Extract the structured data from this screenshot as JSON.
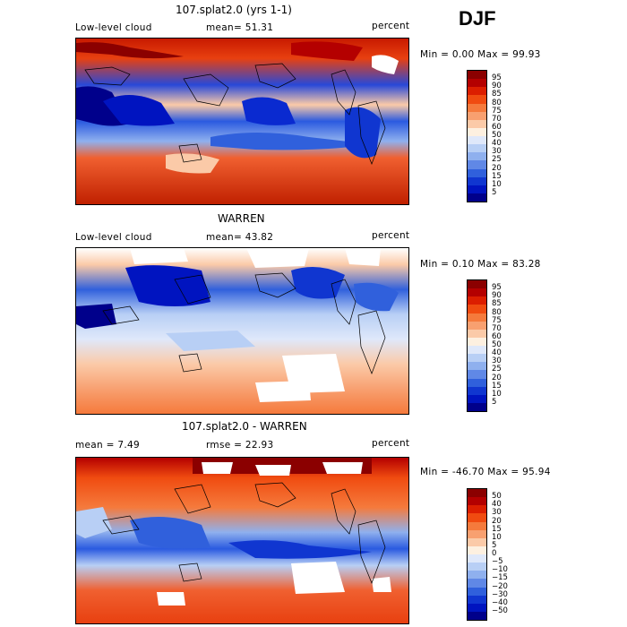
{
  "season": "DJF",
  "panels": [
    {
      "title": "107.splat2.0 (yrs 1-1)",
      "left_label": "Low-level cloud",
      "mid_label": "mean=  51.31",
      "right_label": "percent",
      "minmax": "Min =   0.00 Max =  99.93",
      "colorbar": {
        "labels": [
          "95",
          "90",
          "85",
          "80",
          "75",
          "70",
          "60",
          "50",
          "40",
          "30",
          "25",
          "20",
          "15",
          "10",
          "5"
        ],
        "colors": [
          "#8b0000",
          "#b40000",
          "#dc1e00",
          "#f04b10",
          "#f57a3c",
          "#f8a070",
          "#fbcaa8",
          "#fdf0e0",
          "#dfe8fa",
          "#b8cff5",
          "#8fb0ee",
          "#6088e6",
          "#3060dc",
          "#1036d0",
          "#0014c0",
          "#00008b"
        ]
      }
    },
    {
      "title": "WARREN",
      "left_label": "Low-level cloud",
      "mid_label": "mean=  43.82",
      "right_label": "percent",
      "minmax": "Min =   0.10 Max =  83.28",
      "colorbar": {
        "labels": [
          "95",
          "90",
          "85",
          "80",
          "75",
          "70",
          "60",
          "50",
          "40",
          "30",
          "25",
          "20",
          "15",
          "10",
          "5"
        ],
        "colors": [
          "#8b0000",
          "#b40000",
          "#dc1e00",
          "#f04b10",
          "#f57a3c",
          "#f8a070",
          "#fbcaa8",
          "#fdf0e0",
          "#dfe8fa",
          "#b8cff5",
          "#8fb0ee",
          "#6088e6",
          "#3060dc",
          "#1036d0",
          "#0014c0",
          "#00008b"
        ]
      }
    },
    {
      "title": "107.splat2.0 - WARREN",
      "left_label": "mean =    7.49",
      "mid_label": "rmse =   22.93",
      "right_label": "percent",
      "minmax": "Min = -46.70 Max =  95.94",
      "colorbar": {
        "labels": [
          "50",
          "40",
          "30",
          "20",
          "15",
          "10",
          "5",
          "0",
          "−5",
          "−10",
          "−15",
          "−20",
          "−30",
          "−40",
          "−50"
        ],
        "colors": [
          "#8b0000",
          "#b40000",
          "#dc1e00",
          "#f04b10",
          "#f57a3c",
          "#f8a070",
          "#fbcaa8",
          "#fdf0e0",
          "#dfe8fa",
          "#b8cff5",
          "#8fb0ee",
          "#6088e6",
          "#3060dc",
          "#1036d0",
          "#0014c0",
          "#00008b"
        ]
      }
    }
  ]
}
